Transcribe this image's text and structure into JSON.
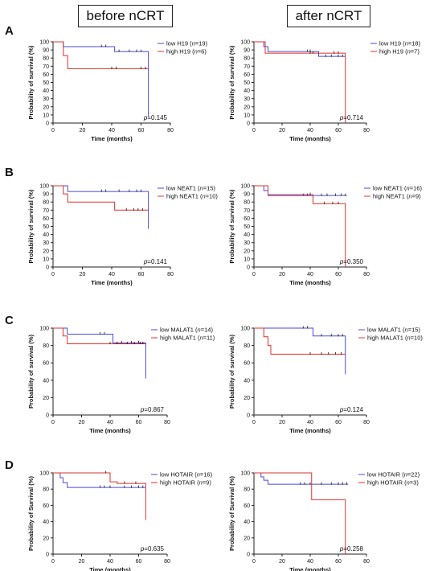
{
  "headers": {
    "before": "before nCRT",
    "after": "after nCRT"
  },
  "row_labels": [
    "A",
    "B",
    "C",
    "D"
  ],
  "colors": {
    "low": "#4a4ad8",
    "high": "#e0302a",
    "axis": "#222222"
  },
  "chart_data": [
    {
      "type": "line",
      "panel": "A",
      "period": "before nCRT",
      "xlabel": "Time (months)",
      "ylabel": "Probability of survival (%)",
      "xlim": [
        0,
        80
      ],
      "ylim": [
        0,
        100
      ],
      "xticks": [
        0,
        20,
        40,
        60,
        80
      ],
      "yticks": [
        0,
        10,
        20,
        30,
        40,
        50,
        60,
        70,
        80,
        90,
        100
      ],
      "pvalue": "0.145",
      "series": [
        {
          "name": "low H19",
          "n": "19",
          "role": "low",
          "steps": [
            [
              0,
              100
            ],
            [
              7,
              94
            ],
            [
              42,
              88
            ],
            [
              65,
              8
            ]
          ],
          "end": 65,
          "censors": [
            [
              33,
              94
            ],
            [
              36,
              94
            ],
            [
              45,
              88
            ],
            [
              52,
              88
            ],
            [
              57,
              88
            ],
            [
              60,
              88
            ]
          ]
        },
        {
          "name": "high H19",
          "n": "6",
          "role": "high",
          "steps": [
            [
              0,
              100
            ],
            [
              7,
              83
            ],
            [
              10,
              67
            ]
          ],
          "end": 65,
          "censors": [
            [
              40,
              67
            ],
            [
              43,
              67
            ],
            [
              60,
              67
            ],
            [
              63,
              67
            ]
          ]
        }
      ]
    },
    {
      "type": "line",
      "panel": "A",
      "period": "after nCRT",
      "xlabel": "Time (months)",
      "ylabel": "Probability of survival (%)",
      "xlim": [
        0,
        80
      ],
      "ylim": [
        0,
        100
      ],
      "xticks": [
        0,
        20,
        40,
        60,
        80
      ],
      "yticks": [
        0,
        10,
        20,
        30,
        40,
        50,
        60,
        70,
        80,
        90,
        100
      ],
      "pvalue": "0.714",
      "series": [
        {
          "name": "low H19",
          "n": "18",
          "role": "low",
          "steps": [
            [
              0,
              100
            ],
            [
              7,
              94
            ],
            [
              10,
              88
            ],
            [
              46,
              82
            ]
          ],
          "end": 65,
          "censors": [
            [
              38,
              88
            ],
            [
              40,
              88
            ],
            [
              51,
              82
            ],
            [
              55,
              82
            ],
            [
              60,
              82
            ],
            [
              63,
              82
            ]
          ]
        },
        {
          "name": "high H19",
          "n": "7",
          "role": "high",
          "steps": [
            [
              0,
              100
            ],
            [
              8,
              86
            ],
            [
              65,
              0
            ]
          ],
          "end": 65,
          "censors": [
            [
              40,
              86
            ],
            [
              42,
              86
            ],
            [
              57,
              86
            ],
            [
              60,
              86
            ]
          ]
        }
      ]
    },
    {
      "type": "line",
      "panel": "B",
      "period": "before nCRT",
      "xlabel": "Time (months)",
      "ylabel": "Probability of survival (%)",
      "xlim": [
        0,
        80
      ],
      "ylim": [
        0,
        100
      ],
      "xticks": [
        0,
        20,
        40,
        60,
        80
      ],
      "yticks": [
        0,
        10,
        20,
        30,
        40,
        50,
        60,
        70,
        80,
        90,
        100
      ],
      "pvalue": "0.141",
      "series": [
        {
          "name": "low NEAT1",
          "n": "15",
          "role": "low",
          "steps": [
            [
              0,
              100
            ],
            [
              10,
              93
            ],
            [
              65,
              47
            ]
          ],
          "end": 65,
          "censors": [
            [
              33,
              93
            ],
            [
              36,
              93
            ],
            [
              45,
              93
            ],
            [
              52,
              93
            ],
            [
              57,
              93
            ],
            [
              60,
              93
            ]
          ]
        },
        {
          "name": "high NEAT1",
          "n": "10",
          "role": "high",
          "steps": [
            [
              0,
              100
            ],
            [
              7,
              90
            ],
            [
              10,
              80
            ],
            [
              42,
              70
            ]
          ],
          "end": 65,
          "censors": [
            [
              50,
              70
            ],
            [
              55,
              70
            ],
            [
              58,
              70
            ],
            [
              61,
              70
            ]
          ]
        }
      ]
    },
    {
      "type": "line",
      "panel": "B",
      "period": "after nCRT",
      "xlabel": "Time (months)",
      "ylabel": "Probability of survival (%)",
      "xlim": [
        0,
        80
      ],
      "ylim": [
        0,
        100
      ],
      "xticks": [
        0,
        20,
        40,
        60,
        80
      ],
      "yticks": [
        0,
        10,
        20,
        30,
        40,
        50,
        60,
        70,
        80,
        90,
        100
      ],
      "pvalue": "0.350",
      "series": [
        {
          "name": "low NEAT1",
          "n": "16",
          "role": "low",
          "steps": [
            [
              0,
              100
            ],
            [
              7,
              94
            ],
            [
              10,
              88
            ]
          ],
          "end": 66,
          "censors": [
            [
              35,
              88
            ],
            [
              38,
              88
            ],
            [
              48,
              88
            ],
            [
              52,
              88
            ],
            [
              58,
              88
            ],
            [
              62,
              88
            ],
            [
              65,
              88
            ]
          ]
        },
        {
          "name": "high NEAT1",
          "n": "9",
          "role": "high",
          "steps": [
            [
              0,
              100
            ],
            [
              10,
              89
            ],
            [
              42,
              78
            ],
            [
              65,
              0
            ]
          ],
          "end": 65,
          "censors": [
            [
              40,
              89
            ],
            [
              50,
              78
            ],
            [
              56,
              78
            ],
            [
              60,
              78
            ]
          ]
        }
      ]
    },
    {
      "type": "line",
      "panel": "C",
      "period": "before nCRT",
      "xlabel": "Time (months)",
      "ylabel": "Probability of survival (%)",
      "xlim": [
        0,
        80
      ],
      "ylim": [
        0,
        100
      ],
      "xticks": [
        0,
        20,
        40,
        60,
        80
      ],
      "yticks": [
        0,
        20,
        40,
        60,
        80,
        100
      ],
      "pvalue": "0.867",
      "series": [
        {
          "name": "low MALAT1",
          "n": "14",
          "role": "low",
          "steps": [
            [
              0,
              100
            ],
            [
              10,
              93
            ],
            [
              42,
              83
            ],
            [
              65,
              42
            ]
          ],
          "end": 65,
          "censors": [
            [
              33,
              93
            ],
            [
              36,
              93
            ],
            [
              48,
              83
            ],
            [
              55,
              83
            ],
            [
              60,
              83
            ]
          ]
        },
        {
          "name": "high MALAT1",
          "n": "11",
          "role": "high",
          "steps": [
            [
              0,
              100
            ],
            [
              7,
              91
            ],
            [
              10,
              82
            ]
          ],
          "end": 65,
          "censors": [
            [
              40,
              82
            ],
            [
              45,
              82
            ],
            [
              52,
              82
            ],
            [
              57,
              82
            ],
            [
              61,
              82
            ],
            [
              63,
              82
            ]
          ]
        }
      ]
    },
    {
      "type": "line",
      "panel": "C",
      "period": "after nCRT",
      "xlabel": "Time (months)",
      "ylabel": "Probability of survival (%)",
      "xlim": [
        0,
        80
      ],
      "ylim": [
        0,
        100
      ],
      "xticks": [
        0,
        20,
        40,
        60,
        80
      ],
      "yticks": [
        0,
        20,
        40,
        60,
        80,
        100
      ],
      "pvalue": "0.124",
      "series": [
        {
          "name": "low MALAT1",
          "n": "15",
          "role": "low",
          "steps": [
            [
              0,
              100
            ],
            [
              42,
              91
            ],
            [
              65,
              47
            ]
          ],
          "end": 65,
          "censors": [
            [
              35,
              100
            ],
            [
              38,
              100
            ],
            [
              48,
              91
            ],
            [
              55,
              91
            ],
            [
              60,
              91
            ],
            [
              63,
              91
            ]
          ]
        },
        {
          "name": "high MALAT1",
          "n": "10",
          "role": "high",
          "steps": [
            [
              0,
              100
            ],
            [
              7,
              90
            ],
            [
              10,
              80
            ],
            [
              12,
              70
            ]
          ],
          "end": 65,
          "censors": [
            [
              40,
              70
            ],
            [
              48,
              70
            ],
            [
              53,
              70
            ],
            [
              58,
              70
            ],
            [
              62,
              70
            ]
          ]
        }
      ]
    },
    {
      "type": "line",
      "panel": "D",
      "period": "before nCRT",
      "xlabel": "Time (months)",
      "ylabel": "Probability of Survival (%)",
      "xlim": [
        0,
        80
      ],
      "ylim": [
        0,
        100
      ],
      "xticks": [
        0,
        20,
        40,
        60,
        80
      ],
      "yticks": [
        0,
        20,
        40,
        60,
        80,
        100
      ],
      "pvalue": "0.635",
      "series": [
        {
          "name": "low HOTAIR",
          "n": "16",
          "role": "low",
          "steps": [
            [
              0,
              100
            ],
            [
              5,
              94
            ],
            [
              7,
              88
            ],
            [
              10,
              82
            ]
          ],
          "end": 65,
          "censors": [
            [
              33,
              82
            ],
            [
              36,
              82
            ],
            [
              40,
              82
            ],
            [
              50,
              82
            ],
            [
              55,
              82
            ],
            [
              60,
              82
            ],
            [
              63,
              82
            ]
          ]
        },
        {
          "name": "high HOTAIR",
          "n": "9",
          "role": "high",
          "steps": [
            [
              0,
              100
            ],
            [
              40,
              89
            ],
            [
              45,
              87
            ],
            [
              65,
              42
            ]
          ],
          "end": 65,
          "censors": [
            [
              37,
              100
            ],
            [
              50,
              87
            ],
            [
              58,
              87
            ]
          ]
        }
      ]
    },
    {
      "type": "line",
      "panel": "D",
      "period": "after nCRT",
      "xlabel": "Time (months)",
      "ylabel": "Probability of Survival (%)",
      "xlim": [
        0,
        80
      ],
      "ylim": [
        0,
        100
      ],
      "xticks": [
        0,
        20,
        40,
        60,
        80
      ],
      "yticks": [
        0,
        20,
        40,
        60,
        80,
        100
      ],
      "pvalue": "0.258",
      "series": [
        {
          "name": "low HOTAIR",
          "n": "22",
          "role": "low",
          "steps": [
            [
              0,
              100
            ],
            [
              5,
              95
            ],
            [
              7,
              91
            ],
            [
              10,
              86
            ]
          ],
          "end": 67,
          "censors": [
            [
              33,
              86
            ],
            [
              36,
              86
            ],
            [
              40,
              86
            ],
            [
              48,
              86
            ],
            [
              55,
              86
            ],
            [
              60,
              86
            ],
            [
              63,
              86
            ],
            [
              66,
              86
            ]
          ]
        },
        {
          "name": "high HOTAIR",
          "n": "3",
          "role": "high",
          "steps": [
            [
              0,
              100
            ],
            [
              41,
              67
            ],
            [
              65,
              0
            ]
          ],
          "end": 65,
          "censors": []
        }
      ]
    }
  ]
}
